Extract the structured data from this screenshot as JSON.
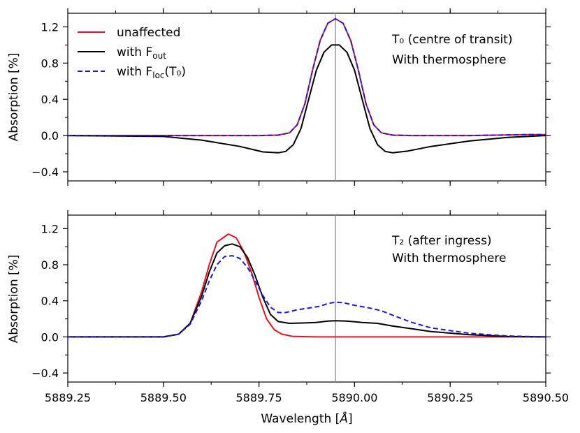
{
  "chart_data": [
    {
      "type": "line",
      "panel": "top",
      "ylabel": "Absorption [%]",
      "xlabel": "",
      "xlim": [
        5889.25,
        5890.5
      ],
      "ylim": [
        -0.5,
        1.35
      ],
      "yticks": [
        -0.4,
        0.0,
        0.4,
        0.8,
        1.2
      ],
      "ytick_labels": [
        "−0.4",
        "0.0",
        "0.4",
        "0.8",
        "1.2"
      ],
      "vline_x": 5889.95,
      "annotation": {
        "line1": "T₀ (centre of transit)",
        "line2": "With thermosphere"
      },
      "legend": {
        "placement": "top-left",
        "entries": [
          {
            "label": "unaffected",
            "color": "#e8121c",
            "dash": "solid"
          },
          {
            "label": "with Fₒᵤₜ",
            "main": "with F",
            "sub": "out",
            "tail": "",
            "color": "#000000",
            "dash": "solid"
          },
          {
            "label": "with F_loc(T₀)",
            "main": "with F",
            "sub": "loc",
            "tail": "(T₀)",
            "color": "#1a1ad8",
            "dash": "dashed"
          }
        ]
      },
      "series": [
        {
          "name": "unaffected",
          "color": "#e8121c",
          "dash": "solid",
          "x": [
            5889.25,
            5889.6,
            5889.75,
            5889.8,
            5889.83,
            5889.85,
            5889.87,
            5889.89,
            5889.91,
            5889.93,
            5889.95,
            5889.97,
            5889.99,
            5890.01,
            5890.03,
            5890.05,
            5890.07,
            5890.1,
            5890.15,
            5890.3,
            5890.45,
            5890.5
          ],
          "y": [
            0.0,
            0.0,
            0.0,
            0.005,
            0.03,
            0.12,
            0.35,
            0.72,
            1.05,
            1.24,
            1.29,
            1.24,
            1.05,
            0.72,
            0.35,
            0.12,
            0.03,
            0.005,
            0.0,
            0.0,
            0.01,
            0.01
          ]
        },
        {
          "name": "with F_out",
          "color": "#000000",
          "dash": "solid",
          "x": [
            5889.25,
            5889.5,
            5889.6,
            5889.7,
            5889.76,
            5889.8,
            5889.82,
            5889.84,
            5889.86,
            5889.88,
            5889.9,
            5889.92,
            5889.94,
            5889.96,
            5889.98,
            5890.0,
            5890.02,
            5890.04,
            5890.06,
            5890.08,
            5890.1,
            5890.14,
            5890.2,
            5890.3,
            5890.4,
            5890.5
          ],
          "y": [
            0.0,
            -0.01,
            -0.05,
            -0.12,
            -0.18,
            -0.19,
            -0.175,
            -0.1,
            0.08,
            0.4,
            0.72,
            0.92,
            1.0,
            1.0,
            0.92,
            0.72,
            0.4,
            0.08,
            -0.1,
            -0.175,
            -0.19,
            -0.17,
            -0.12,
            -0.06,
            -0.02,
            0.0
          ]
        },
        {
          "name": "with F_loc(T0)",
          "color": "#1a1ad8",
          "dash": "dashed",
          "x": [
            5889.25,
            5889.6,
            5889.75,
            5889.8,
            5889.83,
            5889.85,
            5889.87,
            5889.89,
            5889.91,
            5889.93,
            5889.95,
            5889.97,
            5889.99,
            5890.01,
            5890.03,
            5890.05,
            5890.07,
            5890.1,
            5890.15,
            5890.3,
            5890.45,
            5890.5
          ],
          "y": [
            0.0,
            0.0,
            0.0,
            0.005,
            0.03,
            0.12,
            0.35,
            0.72,
            1.05,
            1.24,
            1.29,
            1.24,
            1.05,
            0.72,
            0.35,
            0.12,
            0.03,
            0.005,
            0.0,
            0.0,
            0.01,
            0.01
          ]
        }
      ]
    },
    {
      "type": "line",
      "panel": "bottom",
      "ylabel": "Absorption [%]",
      "xlabel": "Wavelength [Å]",
      "xlabel_main": "Wavelength [",
      "xlabel_unit": "Å",
      "xlabel_tail": "]",
      "xlim": [
        5889.25,
        5890.5
      ],
      "ylim": [
        -0.5,
        1.35
      ],
      "xticks": [
        5889.25,
        5889.5,
        5889.75,
        5890.0,
        5890.25,
        5890.5
      ],
      "xtick_labels": [
        "5889.25",
        "5889.50",
        "5889.75",
        "5890.00",
        "5890.25",
        "5890.50"
      ],
      "yticks": [
        -0.4,
        0.0,
        0.4,
        0.8,
        1.2
      ],
      "ytick_labels": [
        "−0.4",
        "0.0",
        "0.4",
        "0.8",
        "1.2"
      ],
      "vline_x": 5889.95,
      "annotation": {
        "line1": "T₂ (after ingress)",
        "line2": "With thermosphere"
      },
      "series": [
        {
          "name": "unaffected",
          "color": "#e8121c",
          "dash": "solid",
          "x": [
            5889.25,
            5889.5,
            5889.54,
            5889.57,
            5889.6,
            5889.62,
            5889.64,
            5889.66,
            5889.67,
            5889.69,
            5889.71,
            5889.73,
            5889.75,
            5889.77,
            5889.79,
            5889.81,
            5889.84,
            5889.9,
            5890.5
          ],
          "y": [
            0.0,
            0.0,
            0.03,
            0.15,
            0.5,
            0.8,
            1.05,
            1.11,
            1.14,
            1.1,
            0.95,
            0.72,
            0.44,
            0.2,
            0.08,
            0.03,
            0.005,
            0.0,
            0.0
          ]
        },
        {
          "name": "with F_out",
          "color": "#000000",
          "dash": "solid",
          "x": [
            5889.25,
            5889.5,
            5889.54,
            5889.57,
            5889.6,
            5889.62,
            5889.64,
            5889.66,
            5889.68,
            5889.7,
            5889.72,
            5889.74,
            5889.76,
            5889.78,
            5889.8,
            5889.83,
            5889.87,
            5889.9,
            5889.93,
            5889.95,
            5889.98,
            5890.02,
            5890.06,
            5890.1,
            5890.15,
            5890.2,
            5890.3,
            5890.4,
            5890.5
          ],
          "y": [
            0.0,
            0.0,
            0.03,
            0.15,
            0.45,
            0.72,
            0.93,
            1.01,
            1.03,
            1.0,
            0.88,
            0.68,
            0.44,
            0.25,
            0.17,
            0.15,
            0.155,
            0.16,
            0.175,
            0.18,
            0.175,
            0.16,
            0.15,
            0.12,
            0.09,
            0.06,
            0.025,
            0.005,
            0.0
          ]
        },
        {
          "name": "with F_loc(T0)",
          "color": "#1a1ad8",
          "dash": "dashed",
          "x": [
            5889.25,
            5889.5,
            5889.54,
            5889.57,
            5889.6,
            5889.62,
            5889.64,
            5889.66,
            5889.68,
            5889.7,
            5889.72,
            5889.74,
            5889.76,
            5889.78,
            5889.8,
            5889.82,
            5889.85,
            5889.88,
            5889.91,
            5889.93,
            5889.95,
            5889.97,
            5890.0,
            5890.04,
            5890.07,
            5890.1,
            5890.15,
            5890.2,
            5890.3,
            5890.4,
            5890.5
          ],
          "y": [
            0.0,
            0.0,
            0.03,
            0.14,
            0.4,
            0.62,
            0.8,
            0.89,
            0.9,
            0.87,
            0.77,
            0.62,
            0.46,
            0.33,
            0.27,
            0.27,
            0.3,
            0.32,
            0.34,
            0.37,
            0.385,
            0.38,
            0.35,
            0.32,
            0.29,
            0.24,
            0.16,
            0.1,
            0.04,
            0.01,
            0.0
          ]
        }
      ]
    }
  ]
}
